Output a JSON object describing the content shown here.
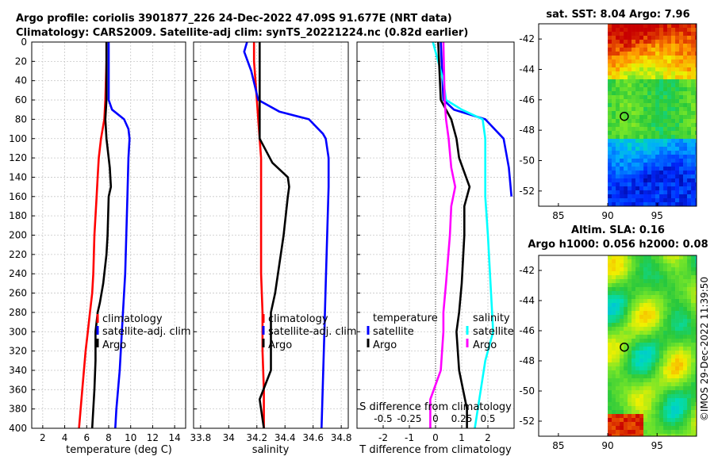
{
  "title": {
    "line1": "Argo profile: coriolis 3901877_226 24-Dec-2022 47.09S 91.677E (NRT data)",
    "line2": "Climatology: CARS2009. Satellite-adj clim: synTS_20221224.nc (0.82d earlier)"
  },
  "watermark": "©IMOS 29-Dec-2022 11:39:50",
  "colors": {
    "climatology": "#ff0000",
    "satellite": "#0000ff",
    "argo": "#000000",
    "sat_s": "#00ffff",
    "argo_s": "#ff00ff"
  },
  "chart_data": [
    {
      "id": "temperature",
      "type": "line",
      "xlabel": "temperature (deg C)",
      "xlim": [
        1,
        15
      ],
      "xticks": [
        2,
        4,
        6,
        8,
        10,
        12,
        14
      ],
      "yticks": [
        0,
        20,
        40,
        60,
        80,
        100,
        120,
        140,
        160,
        180,
        200,
        220,
        240,
        260,
        280,
        300,
        320,
        340,
        360,
        380,
        400
      ],
      "ylim": [
        0,
        400
      ],
      "legend": [
        "climatology",
        "satellite-adj. clim",
        "Argo"
      ],
      "series": [
        {
          "name": "climatology",
          "color": "#ff0000",
          "depth": [
            0,
            20,
            60,
            80,
            100,
            120,
            140,
            160,
            200,
            240,
            260,
            280,
            300,
            320,
            360,
            400
          ],
          "values": [
            7.8,
            7.8,
            7.7,
            7.6,
            7.3,
            7.1,
            7.0,
            6.9,
            6.7,
            6.6,
            6.5,
            6.3,
            6.1,
            5.9,
            5.6,
            5.3
          ]
        },
        {
          "name": "satellite-adj. clim",
          "color": "#0000ff",
          "depth": [
            0,
            40,
            60,
            70,
            80,
            90,
            100,
            120,
            160,
            200,
            240,
            260,
            280,
            300,
            340,
            380,
            400
          ],
          "values": [
            8.0,
            8.0,
            8.0,
            8.3,
            9.4,
            9.8,
            9.9,
            9.8,
            9.7,
            9.6,
            9.5,
            9.4,
            9.3,
            9.2,
            9.0,
            8.7,
            8.6
          ]
        },
        {
          "name": "Argo",
          "color": "#000000",
          "depth": [
            0,
            60,
            80,
            100,
            130,
            150,
            160,
            200,
            220,
            250,
            270,
            280,
            300,
            330,
            360,
            380,
            400
          ],
          "values": [
            7.8,
            7.8,
            7.7,
            7.8,
            8.1,
            8.2,
            8.0,
            7.9,
            7.8,
            7.5,
            7.2,
            7.0,
            6.8,
            6.8,
            6.7,
            6.6,
            6.5
          ]
        }
      ]
    },
    {
      "id": "salinity",
      "type": "line",
      "xlabel": "salinity",
      "xlim": [
        33.75,
        34.85
      ],
      "xticks": [
        33.8,
        34,
        34.2,
        34.4,
        34.6,
        34.8
      ],
      "ylim": [
        0,
        400
      ],
      "legend": [
        "climatology",
        "satellite-adj. clim",
        "Argo"
      ],
      "series": [
        {
          "name": "climatology",
          "color": "#ff0000",
          "depth": [
            0,
            20,
            40,
            60,
            80,
            120,
            160,
            200,
            240,
            280,
            320,
            360,
            400
          ],
          "values": [
            34.18,
            34.18,
            34.19,
            34.2,
            34.21,
            34.23,
            34.23,
            34.23,
            34.23,
            34.24,
            34.24,
            34.25,
            34.25
          ]
        },
        {
          "name": "satellite-adj. clim",
          "color": "#0000ff",
          "depth": [
            0,
            10,
            30,
            60,
            72,
            80,
            95,
            100,
            120,
            150,
            200,
            250,
            300,
            350,
            400
          ],
          "values": [
            34.13,
            34.11,
            34.16,
            34.21,
            34.36,
            34.57,
            34.67,
            34.69,
            34.71,
            34.71,
            34.7,
            34.69,
            34.68,
            34.67,
            34.66
          ]
        },
        {
          "name": "Argo",
          "color": "#000000",
          "depth": [
            0,
            60,
            80,
            100,
            125,
            140,
            150,
            160,
            200,
            260,
            280,
            300,
            340,
            370,
            400
          ],
          "values": [
            34.22,
            34.22,
            34.22,
            34.22,
            34.31,
            34.42,
            34.43,
            34.42,
            34.39,
            34.33,
            34.3,
            34.3,
            34.3,
            34.22,
            34.25
          ]
        }
      ]
    },
    {
      "id": "difference",
      "type": "line",
      "xlabel": "T difference from climatology",
      "xlim": [
        -3,
        3
      ],
      "xticks": [
        -2,
        -1,
        0,
        1,
        2
      ],
      "top_label": "S difference from climatology",
      "top_ticks": [
        "-0.5",
        "-0.25",
        "0",
        "0.25",
        "0.5"
      ],
      "top_tick_t": [
        -2,
        -1,
        0,
        1,
        2
      ],
      "ylim": [
        0,
        400
      ],
      "legend_temperature": {
        "head": "temperature",
        "items": [
          "satellite",
          "Argo"
        ]
      },
      "legend_salinity": {
        "head": "salinity",
        "items": [
          "satellite",
          "Argo"
        ]
      },
      "series": [
        {
          "name": "T satellite",
          "color": "#0000ff",
          "depth": [
            0,
            60,
            70,
            80,
            100,
            130,
            160
          ],
          "values": [
            0.2,
            0.3,
            0.7,
            1.9,
            2.6,
            2.8,
            2.9
          ]
        },
        {
          "name": "S satellite",
          "color": "#00ffff",
          "depth": [
            0,
            40,
            60,
            70,
            80,
            100,
            130,
            160,
            200,
            250,
            300,
            330,
            400
          ],
          "values": [
            -0.1,
            0.3,
            0.4,
            1.0,
            1.8,
            1.9,
            1.9,
            1.9,
            2.0,
            2.1,
            2.2,
            1.9,
            1.5
          ]
        },
        {
          "name": "T Argo",
          "color": "#000000",
          "depth": [
            0,
            60,
            70,
            80,
            100,
            120,
            150,
            170,
            200,
            250,
            280,
            300,
            340,
            380,
            400
          ],
          "values": [
            0.1,
            0.2,
            0.4,
            0.6,
            0.8,
            0.9,
            1.3,
            1.1,
            1.1,
            1.0,
            0.9,
            0.8,
            0.9,
            1.2,
            1.2
          ]
        },
        {
          "name": "S Argo",
          "color": "#ff00ff",
          "depth": [
            0,
            60,
            80,
            100,
            130,
            150,
            170,
            200,
            250,
            280,
            300,
            340,
            370,
            400
          ],
          "values": [
            0.3,
            0.35,
            0.4,
            0.5,
            0.6,
            0.75,
            0.6,
            0.55,
            0.4,
            0.3,
            0.3,
            0.2,
            -0.2,
            -0.2
          ]
        }
      ]
    },
    {
      "id": "sst_map",
      "type": "heatmap",
      "title": "sat. SST: 8.04 Argo: 7.96",
      "xticks": [
        85,
        90,
        95
      ],
      "yticks": [
        -42,
        -44,
        -46,
        -48,
        -50,
        -52
      ],
      "xlim": [
        83,
        99
      ],
      "ylim": [
        -53,
        -41
      ],
      "data_lon_start": 90,
      "marker": {
        "lon": 91.677,
        "lat": -47.09
      }
    },
    {
      "id": "sla_map",
      "type": "heatmap",
      "title": "Altim. SLA: 0.16",
      "subtitle": "Argo h1000: 0.056 h2000: 0.08",
      "xticks": [
        85,
        90,
        95
      ],
      "yticks": [
        -42,
        -44,
        -46,
        -48,
        -50,
        -52
      ],
      "xlim": [
        83,
        99
      ],
      "ylim": [
        -53,
        -41
      ],
      "data_lon_start": 90,
      "marker": {
        "lon": 91.677,
        "lat": -47.09
      }
    }
  ]
}
